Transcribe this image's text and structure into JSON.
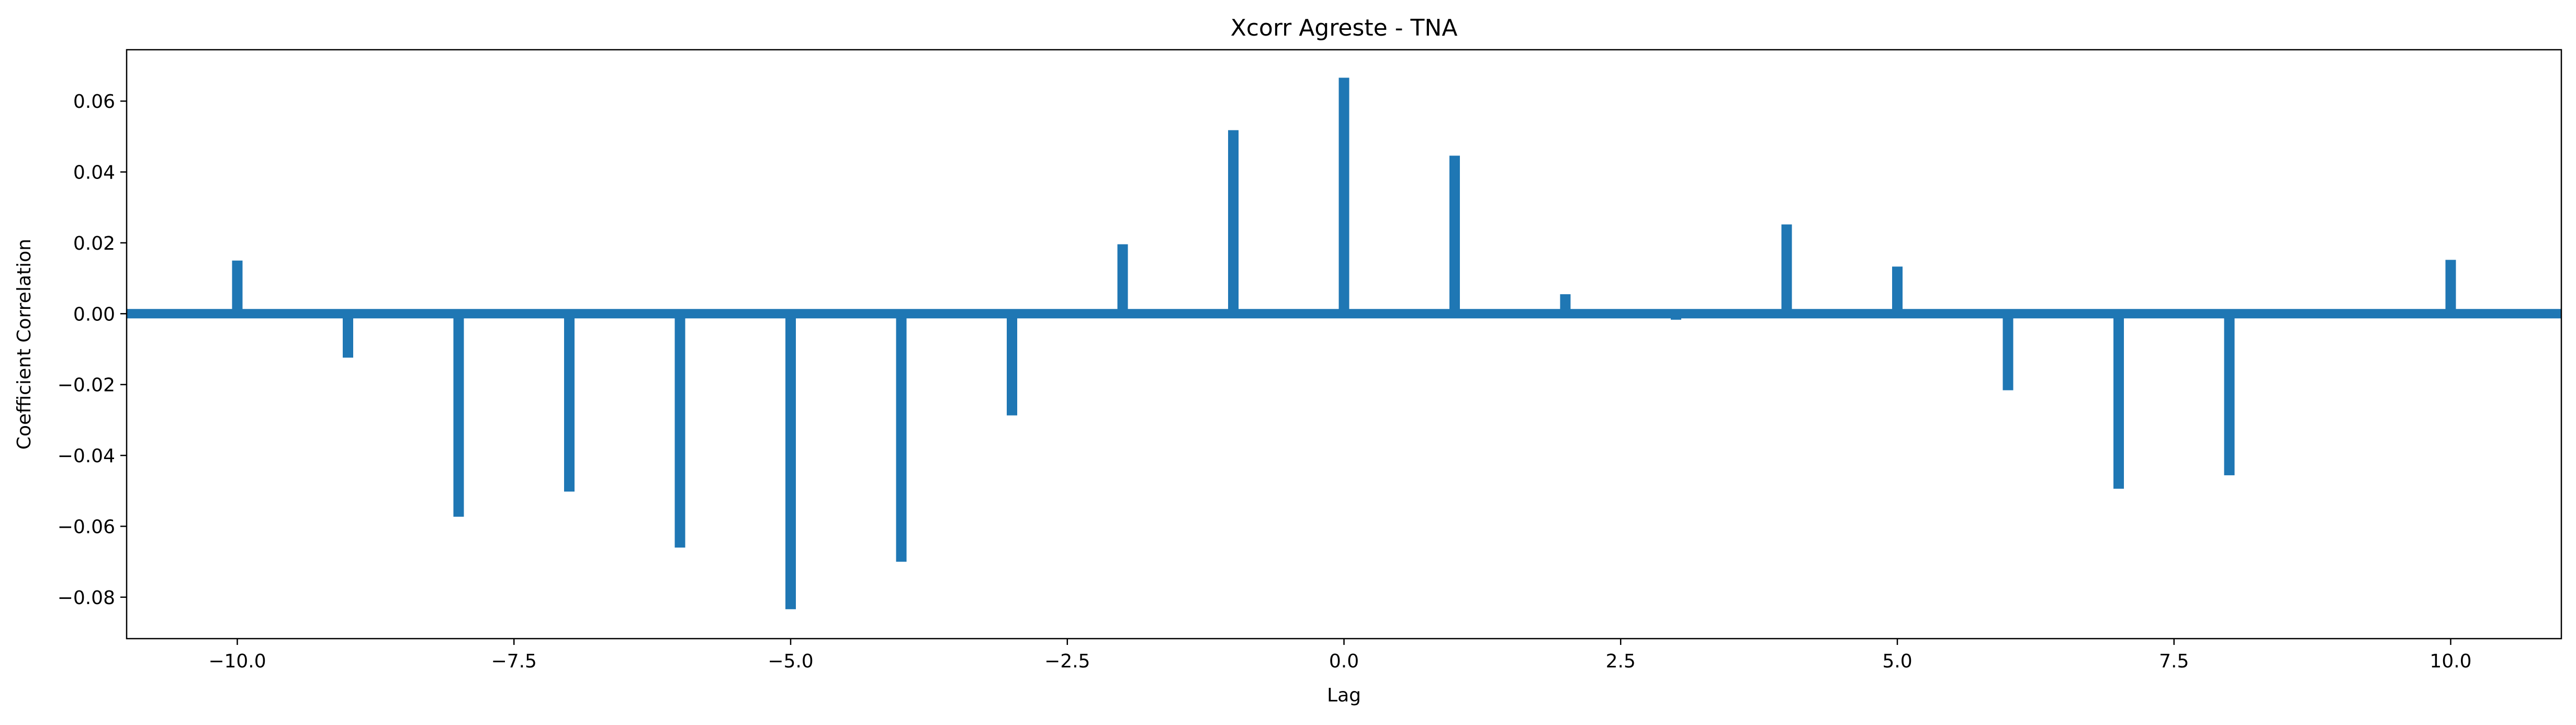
{
  "chart_data": {
    "type": "bar",
    "title": "Xcorr Agreste - TNA",
    "xlabel": "Lag",
    "ylabel": "Coefficient Correlation",
    "xlim": [
      -11,
      11
    ],
    "ylim": [
      -0.0917,
      0.0745
    ],
    "grid": false,
    "baseline": 0.0,
    "x": [
      -10,
      -9,
      -8,
      -7,
      -6,
      -5,
      -4,
      -3,
      -2,
      -1,
      0,
      1,
      2,
      3,
      4,
      5,
      6,
      7,
      8,
      9,
      10
    ],
    "series": [
      {
        "values": [
          0.015,
          -0.0124,
          -0.0573,
          -0.0502,
          -0.066,
          -0.0834,
          -0.07,
          -0.0287,
          0.0196,
          0.0518,
          0.0666,
          0.0446,
          0.0055,
          -0.0017,
          0.0252,
          0.0133,
          -0.0216,
          -0.0494,
          -0.0456,
          -0.001,
          0.0152
        ],
        "color": "#1f77b4"
      }
    ],
    "x_ticks": [
      -10.0,
      -7.5,
      -5.0,
      -2.5,
      0.0,
      2.5,
      5.0,
      7.5,
      10.0
    ],
    "x_tick_labels": [
      "−10.0",
      "−7.5",
      "−5.0",
      "−2.5",
      "0.0",
      "2.5",
      "5.0",
      "7.5",
      "10.0"
    ],
    "y_ticks": [
      -0.08,
      -0.06,
      -0.04,
      -0.02,
      0.0,
      0.02,
      0.04,
      0.06
    ],
    "y_tick_labels": [
      "−0.08",
      "−0.06",
      "−0.04",
      "−0.02",
      "0.00",
      "0.02",
      "0.04",
      "0.06"
    ]
  }
}
